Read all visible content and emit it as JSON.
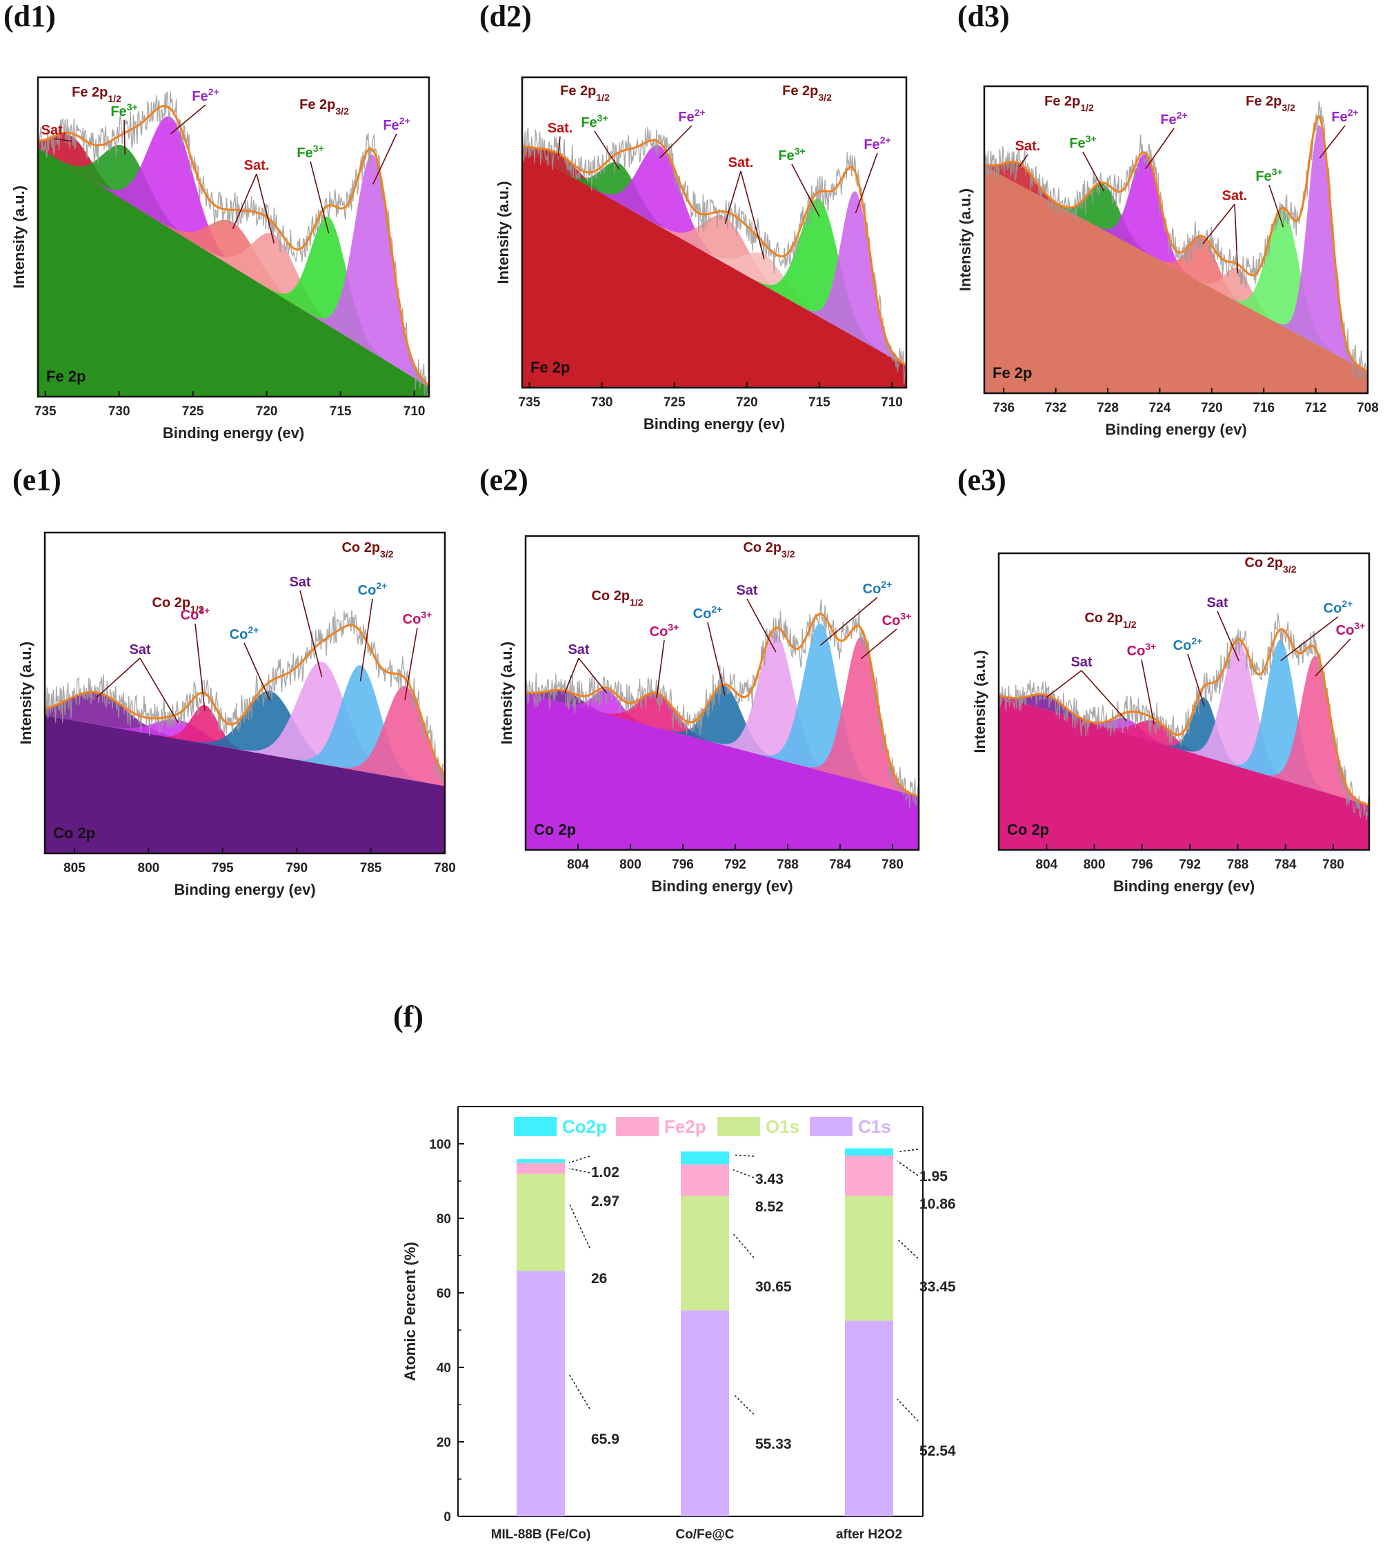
{
  "xps_panels": [
    {
      "id": "d1",
      "panel_label": "(d1)",
      "corner_label": "Fe 2p",
      "x_axis_title": "Binding energy (ev)",
      "y_axis_title": "Intensity (a.u.)",
      "x_range": [
        735.5,
        709
      ],
      "x_ticks": [
        "735",
        "730",
        "725",
        "720",
        "715",
        "710"
      ],
      "background": {
        "color": "#1f8a12",
        "y_start": 0.78,
        "y_end": 0.03
      },
      "envelope_color": "#f0821e",
      "peaks": [
        {
          "label": "Sat.",
          "center": 733.2,
          "height": 0.1,
          "width": 1.3,
          "color": "#c8102e"
        },
        {
          "label": "Fe3+",
          "center": 729.6,
          "height": 0.17,
          "width": 1.5,
          "color": "#1f9a1f"
        },
        {
          "label": "Fe2+",
          "center": 726.5,
          "height": 0.35,
          "width": 1.5,
          "color": "#cc33ee"
        },
        {
          "label": "Sat.",
          "center": 722.3,
          "height": 0.14,
          "width": 1.6,
          "color": "#f07272"
        },
        {
          "label": "Sat.",
          "center": 719.5,
          "height": 0.18,
          "width": 1.5,
          "color": "#f49a9a"
        },
        {
          "label": "Fe3+",
          "center": 715.8,
          "height": 0.34,
          "width": 1.2,
          "color": "#33dd33"
        },
        {
          "label": "Fe2+",
          "center": 712.8,
          "height": 0.62,
          "width": 1.2,
          "color": "#cc66ee"
        }
      ],
      "annotations": [
        {
          "text": "Fe 2p1/2",
          "color": "#7a0f0f"
        },
        {
          "text": "Fe 2p3/2",
          "color": "#7a0f0f"
        }
      ]
    },
    {
      "id": "d2",
      "panel_label": "(d2)",
      "corner_label": "Fe 2p",
      "x_axis_title": "Binding energy (ev)",
      "y_axis_title": "Intensity (a.u.)",
      "x_range": [
        735.5,
        709
      ],
      "x_ticks": [
        "735",
        "730",
        "725",
        "720",
        "715",
        "710"
      ],
      "background": {
        "color": "#c4121d",
        "y_start": 0.77,
        "y_end": 0.07
      },
      "envelope_color": "#f0821e",
      "peaks": [
        {
          "label": "Sat.",
          "center": 733.0,
          "height": 0.05,
          "width": 1.4,
          "color": "#b5121d"
        },
        {
          "label": "Fe3+",
          "center": 728.8,
          "height": 0.13,
          "width": 1.2,
          "color": "#1f9a1f"
        },
        {
          "label": "Fe2+",
          "center": 726.0,
          "height": 0.26,
          "width": 1.4,
          "color": "#cc33ee"
        },
        {
          "label": "Sat.",
          "center": 721.5,
          "height": 0.15,
          "width": 1.5,
          "color": "#f29a9a"
        },
        {
          "label": "Sat.",
          "center": 718.8,
          "height": 0.1,
          "width": 1.4,
          "color": "#f7b9b9"
        },
        {
          "label": "Fe3+",
          "center": 715.0,
          "height": 0.38,
          "width": 1.3,
          "color": "#33dd33"
        },
        {
          "label": "Fe2+",
          "center": 712.5,
          "height": 0.47,
          "width": 1.0,
          "color": "#cc66ee"
        }
      ],
      "annotations": [
        {
          "text": "Fe 2p1/2",
          "color": "#7a0f0f"
        },
        {
          "text": "Fe 2p3/2",
          "color": "#7a0f0f"
        }
      ]
    },
    {
      "id": "d3",
      "panel_label": "(d3)",
      "corner_label": "Fe 2p",
      "x_axis_title": "Binding energy (ev)",
      "y_axis_title": "Intensity (a.u.)",
      "x_range": [
        737.5,
        708
      ],
      "x_ticks": [
        "736",
        "732",
        "728",
        "724",
        "720",
        "716",
        "712",
        "708"
      ],
      "background": {
        "color": "#d9705a",
        "y_start": 0.74,
        "y_end": 0.07
      },
      "envelope_color": "#f0821e",
      "peaks": [
        {
          "label": "Sat.",
          "center": 734.8,
          "height": 0.07,
          "width": 1.2,
          "color": "#c8202e"
        },
        {
          "label": "Fe3+",
          "center": 728.3,
          "height": 0.15,
          "width": 1.2,
          "color": "#1f9a1f"
        },
        {
          "label": "Fe2+",
          "center": 725.1,
          "height": 0.32,
          "width": 1.1,
          "color": "#cc33ee"
        },
        {
          "label": "Sat.",
          "center": 720.7,
          "height": 0.15,
          "width": 1.1,
          "color": "#f07272"
        },
        {
          "label": "Sat.",
          "center": 718.0,
          "height": 0.11,
          "width": 1.0,
          "color": "#f49a9a"
        },
        {
          "label": "Fe3+",
          "center": 714.5,
          "height": 0.38,
          "width": 1.2,
          "color": "#66ee66"
        },
        {
          "label": "Fe2+",
          "center": 711.7,
          "height": 0.72,
          "width": 0.9,
          "color": "#cc66ee"
        }
      ],
      "annotations": [
        {
          "text": "Fe 2p1/2",
          "color": "#7a0f0f"
        },
        {
          "text": "Fe 2p3/2",
          "color": "#7a0f0f"
        }
      ]
    },
    {
      "id": "e1",
      "panel_label": "(e1)",
      "corner_label": "Co 2p",
      "x_axis_title": "Binding energy (ev)",
      "y_axis_title": "Intensity (a.u.)",
      "x_range": [
        807,
        780
      ],
      "x_ticks": [
        "805",
        "800",
        "795",
        "790",
        "785",
        "780"
      ],
      "background": {
        "color": "#5a0f7a",
        "y_start": 0.43,
        "y_end": 0.21
      },
      "envelope_color": "#f0821e",
      "peaks": [
        {
          "label": "Sat",
          "center": 803.5,
          "height": 0.1,
          "width": 2.0,
          "color": "#7a1a9a"
        },
        {
          "label": "Sat",
          "center": 798.0,
          "height": 0.06,
          "width": 1.6,
          "color": "#cc33ee"
        },
        {
          "label": "Co3+",
          "center": 796.2,
          "height": 0.12,
          "width": 0.9,
          "color": "#e6207a"
        },
        {
          "label": "Co2+",
          "center": 791.8,
          "height": 0.2,
          "width": 1.6,
          "color": "#1f6fa8"
        },
        {
          "label": "Sat",
          "center": 788.3,
          "height": 0.32,
          "width": 1.6,
          "color": "#e9a0f0"
        },
        {
          "label": "Co2+",
          "center": 785.7,
          "height": 0.33,
          "width": 1.3,
          "color": "#5ab8ee"
        },
        {
          "label": "Co3+",
          "center": 782.7,
          "height": 0.29,
          "width": 1.3,
          "color": "#f25a9a"
        }
      ],
      "annotations": [
        {
          "text": "Co 2p1/2",
          "color": "#7a0f0f"
        },
        {
          "text": "Co 2p3/2",
          "color": "#7a0f0f"
        }
      ]
    },
    {
      "id": "e2",
      "panel_label": "(e2)",
      "corner_label": "Co 2p",
      "x_axis_title": "Binding energy (ev)",
      "y_axis_title": "Intensity (a.u.)",
      "x_range": [
        808,
        778
      ],
      "x_ticks": [
        "804",
        "800",
        "796",
        "792",
        "788",
        "784",
        "780"
      ],
      "background": {
        "color": "#bb22dd",
        "y_start": 0.5,
        "y_end": 0.17
      },
      "envelope_color": "#f0821e",
      "peaks": [
        {
          "label": "Sat",
          "center": 805.0,
          "height": 0.04,
          "width": 1.3,
          "color": "#7a1a9a"
        },
        {
          "label": "Sat",
          "center": 801.8,
          "height": 0.08,
          "width": 1.0,
          "color": "#cc33ee"
        },
        {
          "label": "Co3+",
          "center": 798.0,
          "height": 0.11,
          "width": 1.4,
          "color": "#e6207a"
        },
        {
          "label": "Co2+",
          "center": 792.8,
          "height": 0.19,
          "width": 1.3,
          "color": "#1f6fa8"
        },
        {
          "label": "Sat",
          "center": 788.9,
          "height": 0.4,
          "width": 1.3,
          "color": "#e9a0f0"
        },
        {
          "label": "Co2+",
          "center": 785.5,
          "height": 0.47,
          "width": 1.3,
          "color": "#5ab8ee"
        },
        {
          "label": "Co3+",
          "center": 782.4,
          "height": 0.46,
          "width": 1.2,
          "color": "#f25a9a"
        }
      ],
      "annotations": [
        {
          "text": "Co 2p1/2",
          "color": "#7a0f0f"
        },
        {
          "text": "Co 2p3/2",
          "color": "#7a0f0f"
        }
      ]
    },
    {
      "id": "e3",
      "panel_label": "(e3)",
      "corner_label": "Co 2p",
      "x_axis_title": "Binding energy (ev)",
      "y_axis_title": "Intensity (a.u.)",
      "x_range": [
        808,
        777
      ],
      "x_ticks": [
        "804",
        "800",
        "796",
        "792",
        "788",
        "784",
        "780"
      ],
      "background": {
        "color": "#d8137a",
        "y_start": 0.52,
        "y_end": 0.15
      },
      "envelope_color": "#f0821e",
      "peaks": [
        {
          "label": "Sat",
          "center": 804.0,
          "height": 0.05,
          "width": 1.4,
          "color": "#7a1a9a"
        },
        {
          "label": "Sat",
          "center": 797.3,
          "height": 0.05,
          "width": 1.2,
          "color": "#cc33ee"
        },
        {
          "label": "Co3+",
          "center": 795.0,
          "height": 0.07,
          "width": 1.5,
          "color": "#e6207a"
        },
        {
          "label": "Co2+",
          "center": 790.8,
          "height": 0.2,
          "width": 1.0,
          "color": "#1f6fa8"
        },
        {
          "label": "Sat",
          "center": 787.9,
          "height": 0.42,
          "width": 1.3,
          "color": "#e9a0f0"
        },
        {
          "label": "Co2+",
          "center": 784.4,
          "height": 0.47,
          "width": 1.2,
          "color": "#5ab8ee"
        },
        {
          "label": "Co3+",
          "center": 781.5,
          "height": 0.45,
          "width": 1.2,
          "color": "#f25a9a"
        }
      ],
      "annotations": [
        {
          "text": "Co 2p1/2",
          "color": "#7a0f0f"
        },
        {
          "text": "Co 2p3/2",
          "color": "#7a0f0f"
        }
      ]
    }
  ],
  "chart_data": {
    "type": "bar",
    "stacked": true,
    "panel_label": "(f)",
    "ylabel": "Atomic Percent (%)",
    "xlabel": "",
    "ylim": [
      0,
      110
    ],
    "yticks": [
      "0",
      "20",
      "40",
      "60",
      "80",
      "100"
    ],
    "categories": [
      "MIL-88B (Fe/Co)",
      "Co/Fe@C",
      "after H2O2"
    ],
    "series": [
      {
        "name": "C1s",
        "color": "#d3b0ff",
        "values": [
          65.9,
          55.33,
          52.54
        ]
      },
      {
        "name": "O1s",
        "color": "#cdeb94",
        "values": [
          26,
          30.65,
          33.45
        ]
      },
      {
        "name": "Fe2p",
        "color": "#ffaad2",
        "values": [
          2.97,
          8.52,
          10.86
        ]
      },
      {
        "name": "Co2p",
        "color": "#40f0ff",
        "values": [
          1.02,
          3.43,
          1.95
        ]
      }
    ],
    "value_labels": [
      [
        "65.9",
        "55.33",
        "52.54"
      ],
      [
        "26",
        "30.65",
        "33.45"
      ],
      [
        "2.97",
        "8.52",
        "10.86"
      ],
      [
        "1.02",
        "3.43",
        "1.95"
      ]
    ],
    "legend": {
      "placement": "top",
      "order": [
        "Co2p",
        "Fe2p",
        "O1s",
        "C1s"
      ]
    }
  }
}
